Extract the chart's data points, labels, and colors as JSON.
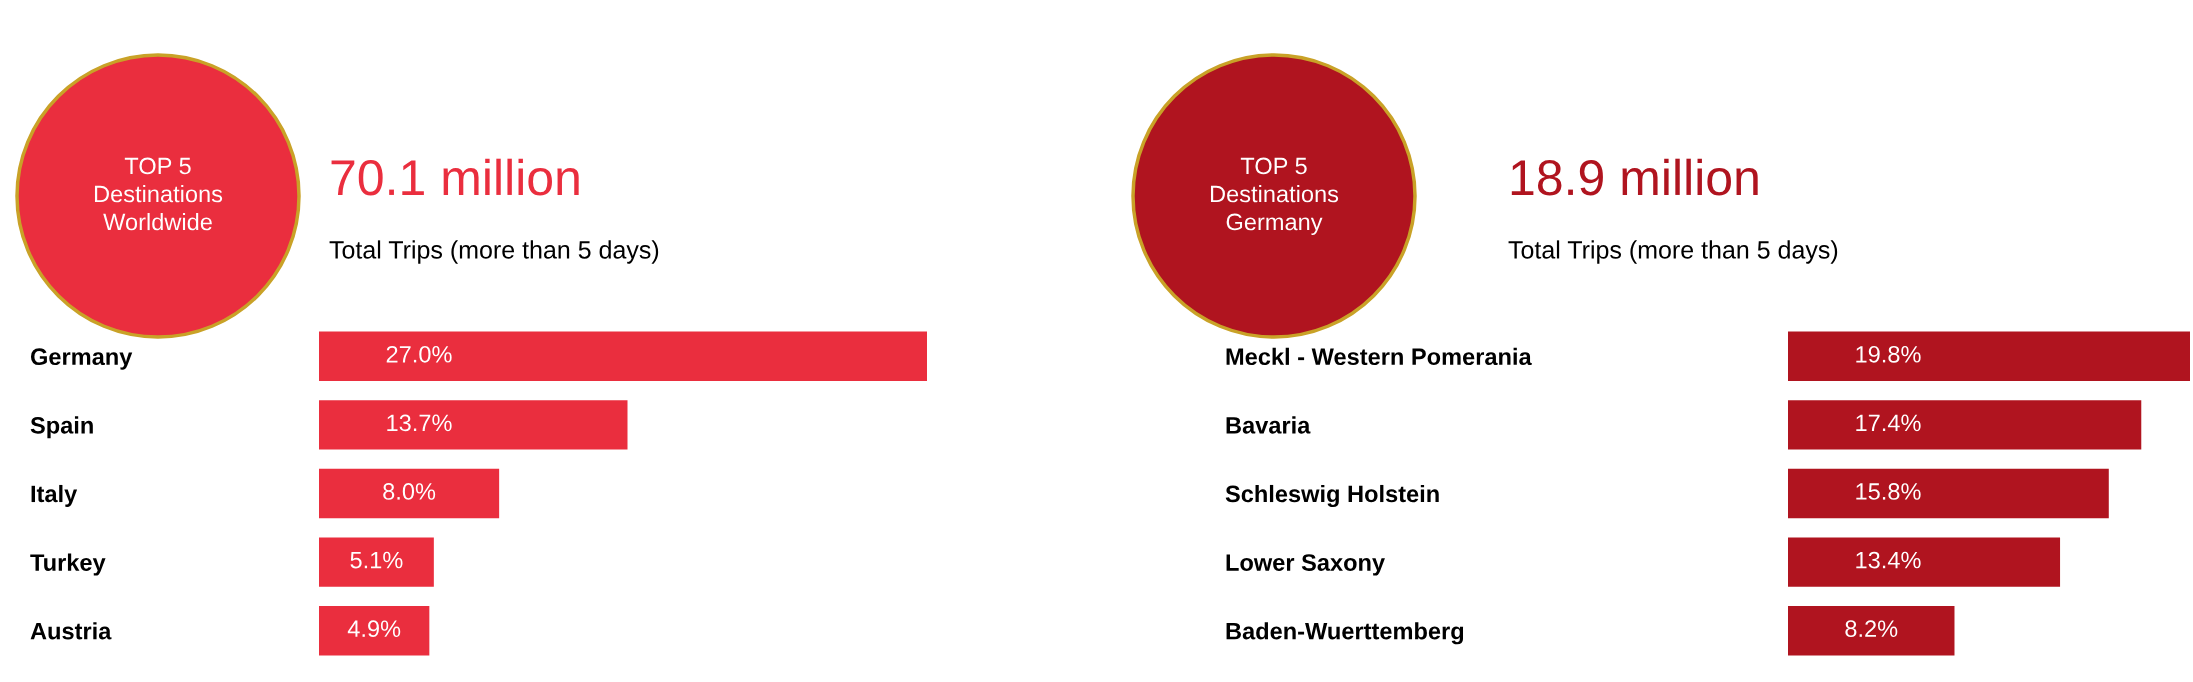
{
  "chart_data": [
    {
      "type": "bar",
      "orientation": "horizontal",
      "title": "TOP 5\nDestinations\nWorldwide",
      "subtitle": "70.1 million",
      "annotations": [
        "Total Trips (more than 5 days)"
      ],
      "categories": [
        "Germany",
        "Spain",
        "Italy",
        "Turkey",
        "Austria"
      ],
      "series": [
        {
          "color": "#ea2e3e",
          "values": [
            27.0,
            13.7,
            8.0,
            5.1,
            4.9
          ],
          "value_labels": [
            "27.0%",
            "13.7%",
            "8.0%",
            "5.1%",
            "4.9%"
          ]
        }
      ]
    },
    {
      "type": "bar",
      "orientation": "horizontal",
      "title": "TOP 5\nDestinations\nGermany",
      "subtitle": "18.9 million",
      "annotations": [
        "Total Trips (more than 5 days)"
      ],
      "categories": [
        "Meckl - Western Pomerania",
        "Bavaria",
        "Schleswig Holstein",
        "Lower Saxony",
        "Baden-Wuerttemberg"
      ],
      "series": [
        {
          "color": "#b0141f",
          "values": [
            19.8,
            17.4,
            15.8,
            13.4,
            8.2
          ],
          "value_labels": [
            "19.8%",
            "17.4%",
            "15.8%",
            "13.4%",
            "8.2%"
          ]
        }
      ]
    }
  ]
}
